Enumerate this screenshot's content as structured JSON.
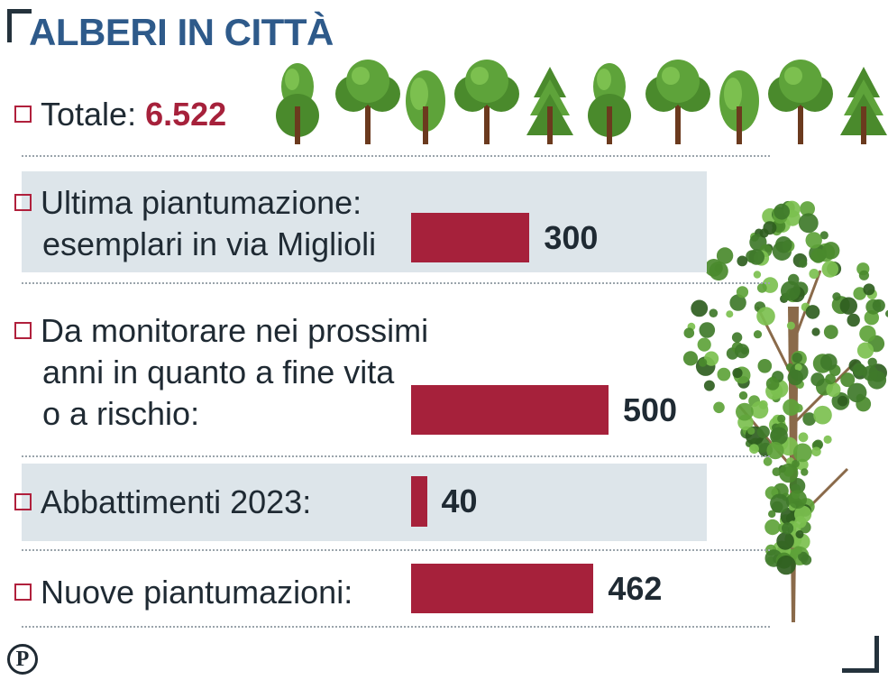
{
  "title": "ALBERI IN CITTÀ",
  "total": {
    "label": "Totale:",
    "value": "6.522"
  },
  "icons": {
    "tree_row": [
      "round-tree-icon",
      "broad-tree-icon",
      "oval-tree-icon",
      "broad-tree-icon",
      "pine-tree-icon",
      "round-tree-icon",
      "broad-tree-icon",
      "oval-tree-icon",
      "broad-tree-icon",
      "pine-tree-icon"
    ],
    "large_tree": "large-tree-icon",
    "publisher_logo": "P"
  },
  "colors": {
    "title": "#2e5a8a",
    "bar": "#a6213b",
    "total_value": "#a6213b",
    "band": "#dde5ea",
    "tree_green": "#5ea33a",
    "trunk": "#6b3a1e"
  },
  "chart_data": {
    "type": "bar",
    "orientation": "horizontal",
    "title": "ALBERI IN CITTÀ",
    "categories": [
      [
        "Ultima piantumazione:",
        "esemplari in via Miglioli"
      ],
      [
        "Da monitorare nei prossimi",
        "anni in quanto a fine vita",
        "o a rischio:"
      ],
      [
        "Abbattimenti 2023:"
      ],
      [
        "Nuove piantumazioni:"
      ]
    ],
    "values": [
      300,
      500,
      40,
      462
    ],
    "value_labels": [
      "300",
      "500",
      "40",
      "462"
    ],
    "xlim": [
      0,
      500
    ],
    "grid": false,
    "legend": "none"
  }
}
